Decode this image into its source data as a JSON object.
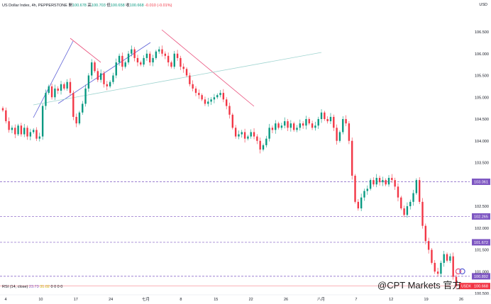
{
  "legend": {
    "symbol": "US Dollar Index, 4h, PEPPERSTONE",
    "o_label": "開",
    "o": "100.678",
    "h_label": "高",
    "h": "100.703",
    "l_label": "低",
    "l": "100.658",
    "c_label": "收",
    "c": "100.668",
    "chg": "-0.010 (-0.01%)"
  },
  "rsi": {
    "label": "RSI (14, close)",
    "value": "23.73",
    "value2": "31.02",
    "zeros": "0 0 0 0"
  },
  "currency": "USD",
  "watermark": "@CPT Markets 官方",
  "colors": {
    "up": "#089981",
    "down": "#f23645",
    "level": "#7e57c2",
    "price_line": "#f23645",
    "trend_blue": "#5b5fd6",
    "trend_pink": "#e94f7b",
    "trend_teal": "#9fd4d0"
  },
  "chart_data": {
    "type": "candlestick",
    "timeframe": "4h",
    "y_axis_ticks": [
      "106.500",
      "106.000",
      "105.500",
      "105.000",
      "104.500",
      "104.000",
      "103.500",
      "102.500",
      "102.000",
      "101.500",
      "101.000",
      "100.500"
    ],
    "ylim": [
      100.3,
      106.75
    ],
    "x_axis_ticks": [
      "4",
      "10",
      "17",
      "24",
      "七月",
      "8",
      "15",
      "22",
      "26",
      "八月",
      "7",
      "12",
      "19",
      "26"
    ],
    "price_labels": [
      {
        "value": "103.061",
        "style": "level"
      },
      {
        "value": "102.265",
        "style": "level"
      },
      {
        "value": "101.672",
        "style": "level"
      },
      {
        "value": "100.892",
        "style": "level"
      },
      {
        "value": "100.668",
        "style": "current",
        "symbol": "USDX"
      }
    ],
    "closes": [
      104.7,
      104.45,
      104.25,
      104.3,
      104.15,
      104.35,
      104.15,
      104.3,
      104.1,
      104.2,
      104.25,
      104.05,
      104.1,
      104.8,
      105.1,
      105.25,
      105.0,
      105.2,
      105.15,
      105.3,
      105.2,
      105.35,
      105.1,
      104.55,
      104.4,
      104.65,
      104.85,
      105.2,
      105.5,
      105.8,
      105.6,
      105.4,
      105.55,
      105.3,
      105.25,
      105.35,
      105.5,
      105.8,
      105.95,
      105.7,
      105.8,
      106.0,
      106.1,
      105.9,
      105.8,
      105.75,
      105.9,
      106.0,
      105.8,
      105.9,
      106.05,
      106.1,
      106.0,
      105.95,
      105.8,
      105.7,
      106.0,
      105.9,
      105.7,
      105.65,
      105.5,
      105.3,
      105.2,
      105.1,
      105.05,
      104.95,
      104.85,
      104.9,
      104.95,
      105.0,
      105.05,
      105.1,
      104.95,
      104.8,
      104.6,
      104.3,
      104.1,
      104.15,
      104.2,
      104.05,
      104.1,
      104.2,
      104.1,
      104.0,
      103.8,
      103.9,
      104.05,
      104.3,
      104.25,
      104.4,
      104.3,
      104.35,
      104.45,
      104.3,
      104.4,
      104.25,
      104.3,
      104.4,
      104.35,
      104.5,
      104.4,
      104.3,
      104.35,
      104.5,
      104.65,
      104.5,
      104.45,
      104.55,
      104.3,
      104.0,
      104.2,
      104.5,
      104.4,
      104.0,
      103.2,
      102.6,
      102.45,
      102.7,
      102.85,
      102.9,
      103.1,
      103.0,
      103.15,
      103.05,
      103.1,
      103.0,
      103.15,
      103.1,
      102.95,
      102.7,
      102.45,
      102.3,
      102.5,
      102.6,
      102.8,
      103.1,
      102.6,
      102.05,
      101.7,
      101.5,
      101.2,
      101.0,
      100.95,
      101.2,
      101.4,
      101.25,
      101.35,
      100.88,
      100.668
    ]
  }
}
